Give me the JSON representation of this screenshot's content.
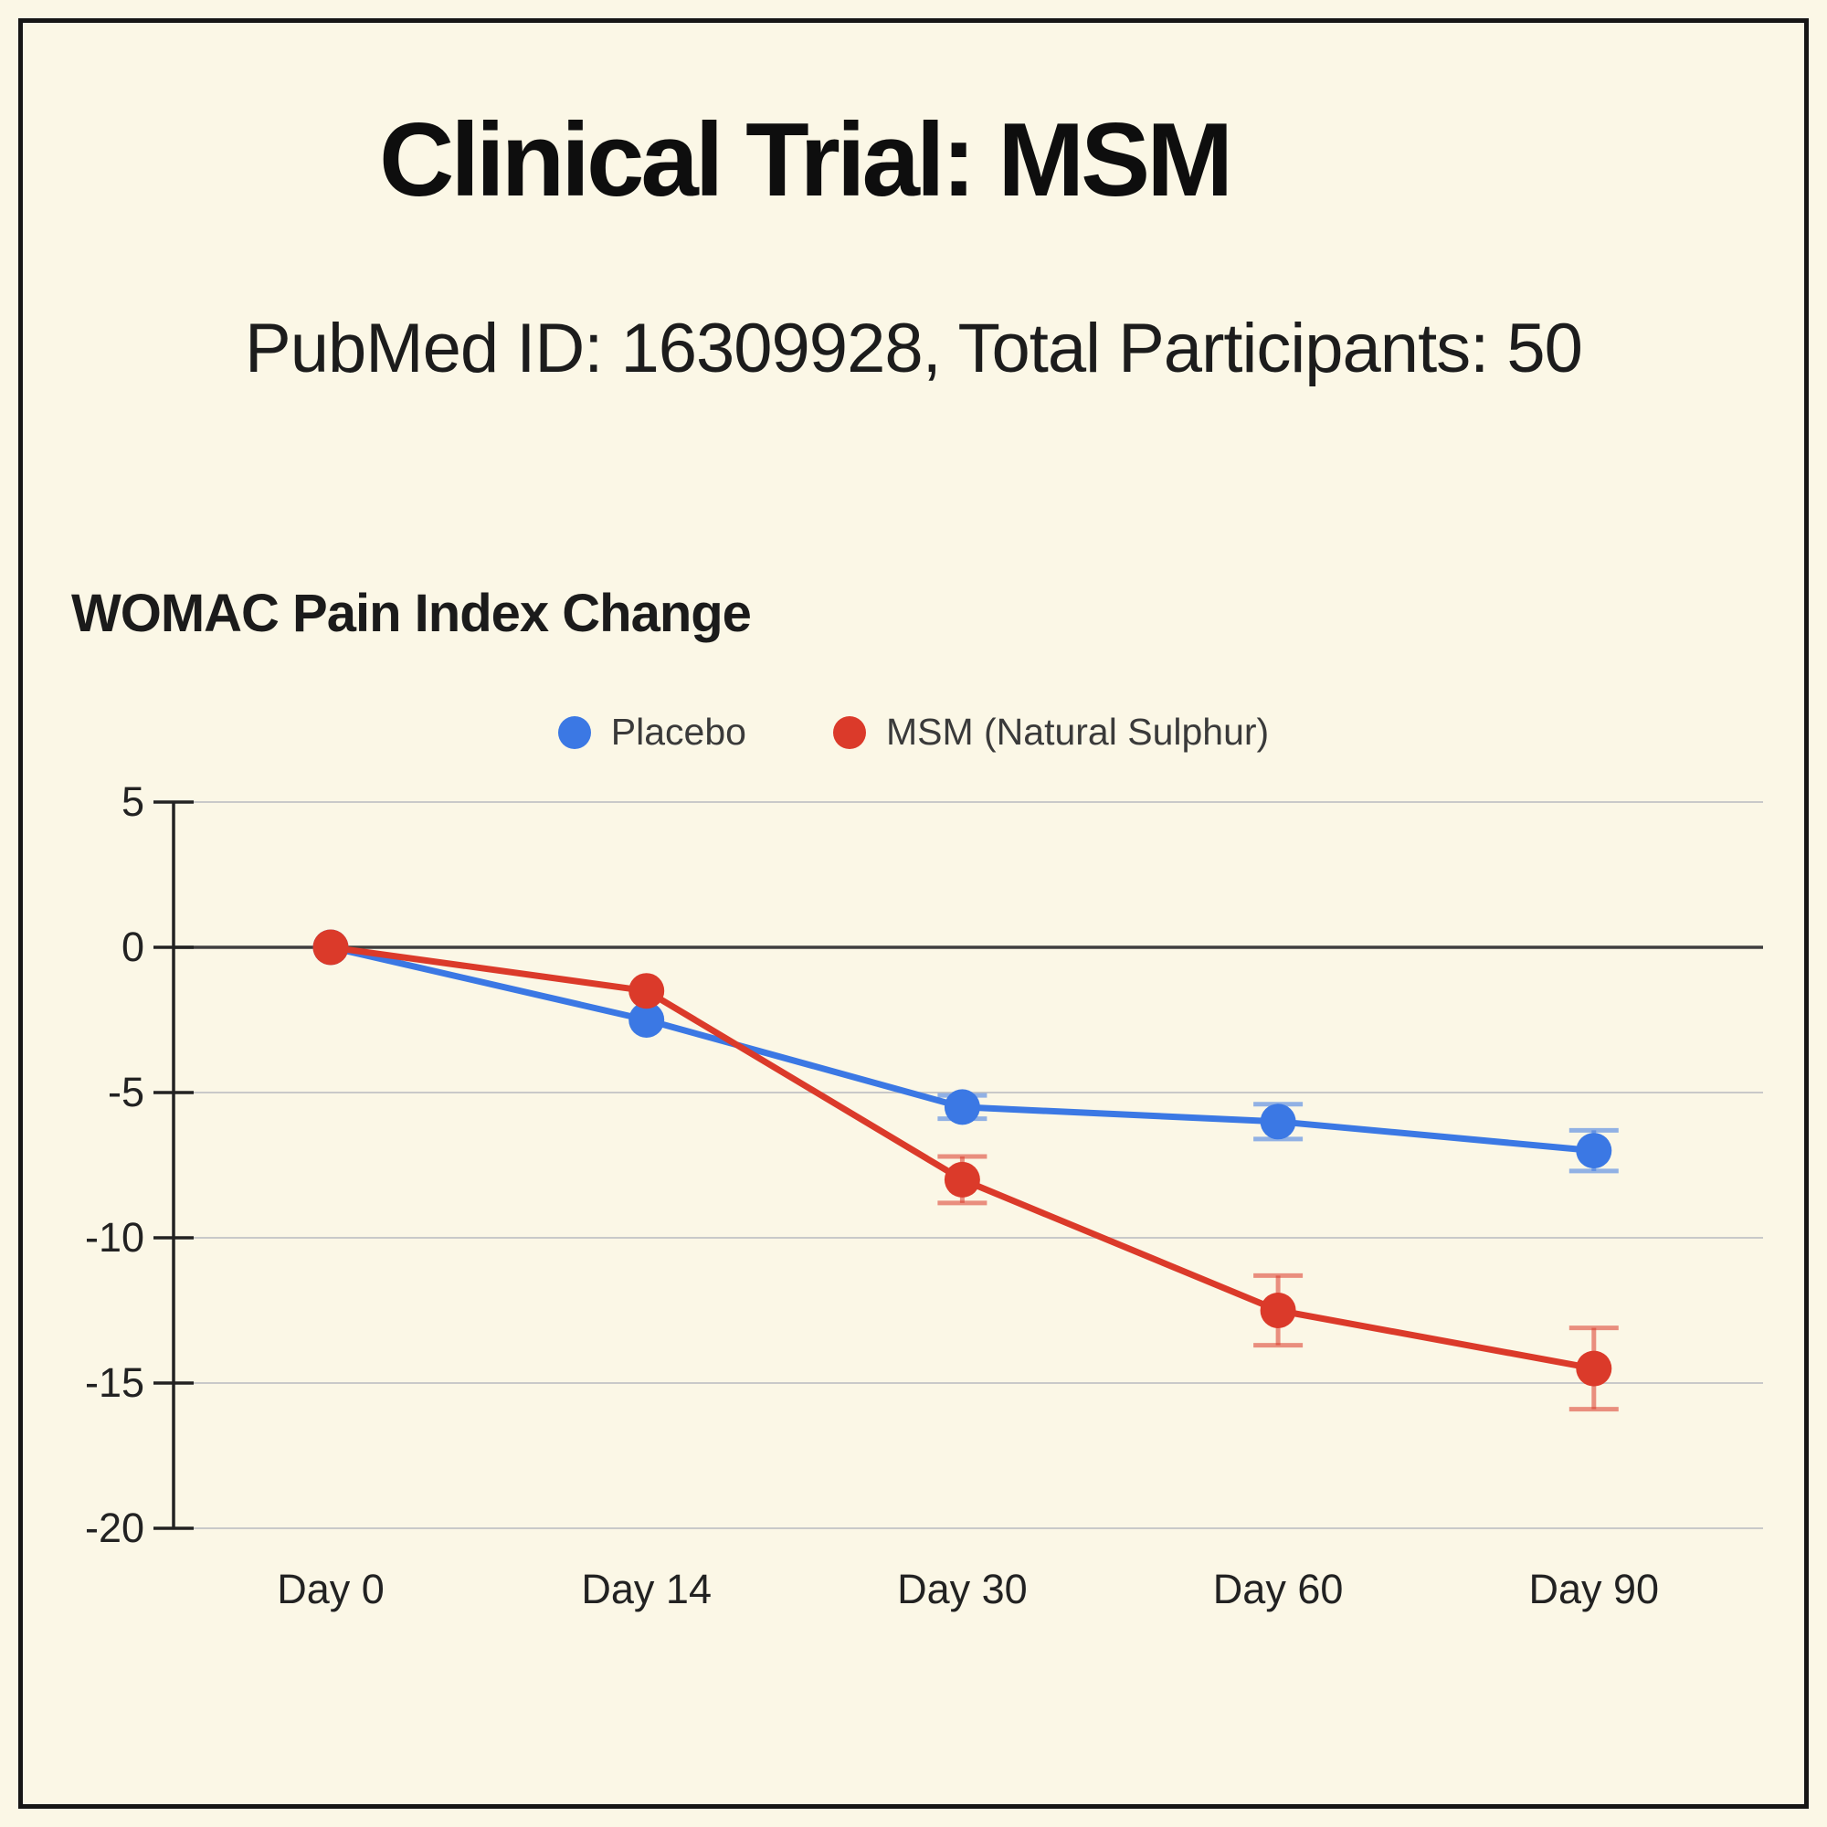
{
  "header": {
    "title": "Clinical Trial: MSM",
    "subtitle": "PubMed ID: 16309928, Total Participants: 50"
  },
  "chart_data": {
    "type": "line",
    "title": "WOMAC Pain Index Change",
    "categories": [
      "Day 0",
      "Day 14",
      "Day 30",
      "Day 60",
      "Day 90"
    ],
    "series": [
      {
        "name": "Placebo",
        "color": "#3b78e4",
        "values": [
          0,
          -2.5,
          -5.5,
          -6,
          -7
        ],
        "error": [
          null,
          null,
          0.4,
          0.6,
          0.7
        ]
      },
      {
        "name": "MSM (Natural Sulphur)",
        "color": "#db3a2a",
        "values": [
          0,
          -1.5,
          -8,
          -12.5,
          -14.5
        ],
        "error": [
          null,
          null,
          0.8,
          1.2,
          1.4
        ]
      }
    ],
    "yticks": [
      5,
      0,
      -5,
      -10,
      -15,
      -20
    ],
    "ylim": [
      -20,
      5
    ],
    "xlabel": "",
    "ylabel": "",
    "grid": true,
    "legend_position": "top"
  },
  "colors": {
    "background": "#fbf7e6",
    "frame": "#161616",
    "gridline": "#c9c9c9",
    "zero_line": "#3f3f3f",
    "axis": "#222222",
    "tick_text": "#222222"
  }
}
